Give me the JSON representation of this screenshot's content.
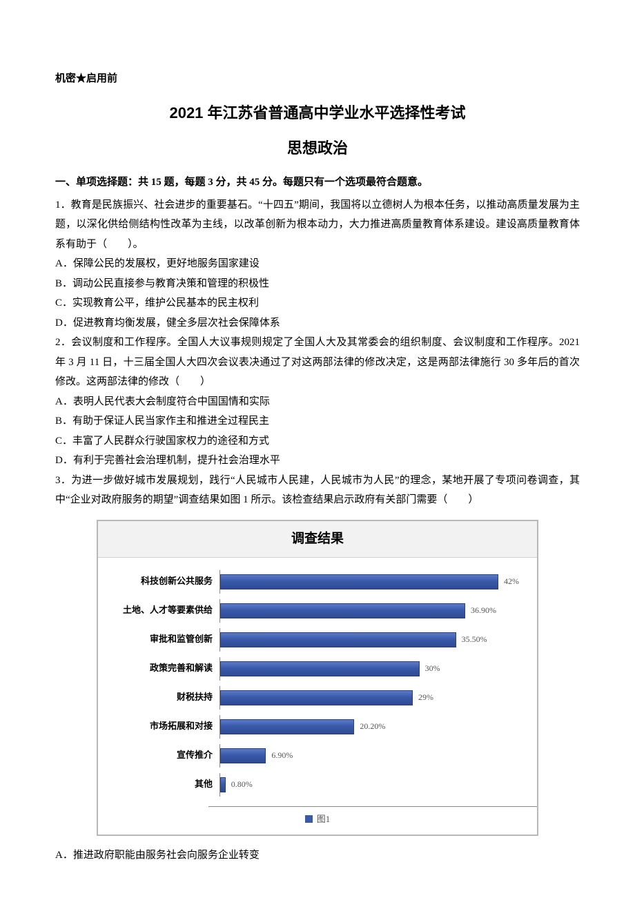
{
  "header": {
    "confidential": "机密★启用前"
  },
  "titles": {
    "main": "2021 年江苏省普通高中学业水平选择性考试",
    "subject": "思想政治"
  },
  "section1": {
    "heading": "一、单项选择题：共 15 题，每题 3 分，共 45 分。每题只有一个选项最符合题意。"
  },
  "q1": {
    "stem": "1．教育是民族振兴、社会进步的重要基石。“十四五”期间，我国将以立德树人为根本任务，以推动高质量发展为主题，以深化供给侧结构性改革为主线，以改革创新为根本动力，大力推进高质量教育体系建设。建设高质量教育体系有助于（　　）。",
    "A": "A．保障公民的发展权，更好地服务国家建设",
    "B": "B．调动公民直接参与教育决策和管理的积极性",
    "C": "C．实现教育公平，维护公民基本的民主权利",
    "D": "D．促进教育均衡发展，健全多层次社会保障体系"
  },
  "q2": {
    "stem": "2．会议制度和工作程序。全国人大议事规则规定了全国人大及其常委会的组织制度、会议制度和工作程序。2021 年 3 月 11 日，十三届全国人大四次会议表决通过了对这两部法律的修改决定，这是两部法律施行 30 多年后的首次修改。这两部法律的修改（　　）",
    "A": "A．表明人民代表大会制度符合中国国情和实际",
    "B": "B．有助于保证人民当家作主和推进全过程民主",
    "C": "C．丰富了人民群众行驶国家权力的途径和方式",
    "D": "D．有利于完善社会治理机制，提升社会治理水平"
  },
  "q3": {
    "stem": "3．为进一步做好城市发展规划，践行“人民城市人民建，人民城市为人民”的理念，某地开展了专项问卷调查，其中“企业对政府服务的期望”调查结果如图 1 所示。该检查结果启示政府有关部门需要（　　）",
    "A": "A．推进政府职能由服务社会向服务企业转变"
  },
  "chart": {
    "type": "bar-horizontal",
    "title": "调查结果",
    "legend": "图1",
    "max": 45,
    "bar_color": "#3a59a8",
    "bar_border": "#2b3f7a",
    "background_color": "#ffffff",
    "grid_color": "#b8b8b8",
    "title_bg": "#f2f2f2",
    "title_fontsize": 19,
    "cat_fontsize": 13,
    "val_fontsize": 12,
    "val_color": "#555555",
    "items": [
      {
        "cat": "科技创新公共服务",
        "val": 42.0,
        "label": "42%"
      },
      {
        "cat": "土地、人才等要素供给",
        "val": 36.9,
        "label": "36.90%"
      },
      {
        "cat": "审批和监管创新",
        "val": 35.5,
        "label": "35.50%"
      },
      {
        "cat": "政策完善和解读",
        "val": 30.0,
        "label": "30%"
      },
      {
        "cat": "财税扶持",
        "val": 29.0,
        "label": "29%"
      },
      {
        "cat": "市场拓展和对接",
        "val": 20.2,
        "label": "20.20%"
      },
      {
        "cat": "宣传推介",
        "val": 6.9,
        "label": "6.90%"
      },
      {
        "cat": "其他",
        "val": 0.8,
        "label": "0.80%"
      }
    ]
  }
}
